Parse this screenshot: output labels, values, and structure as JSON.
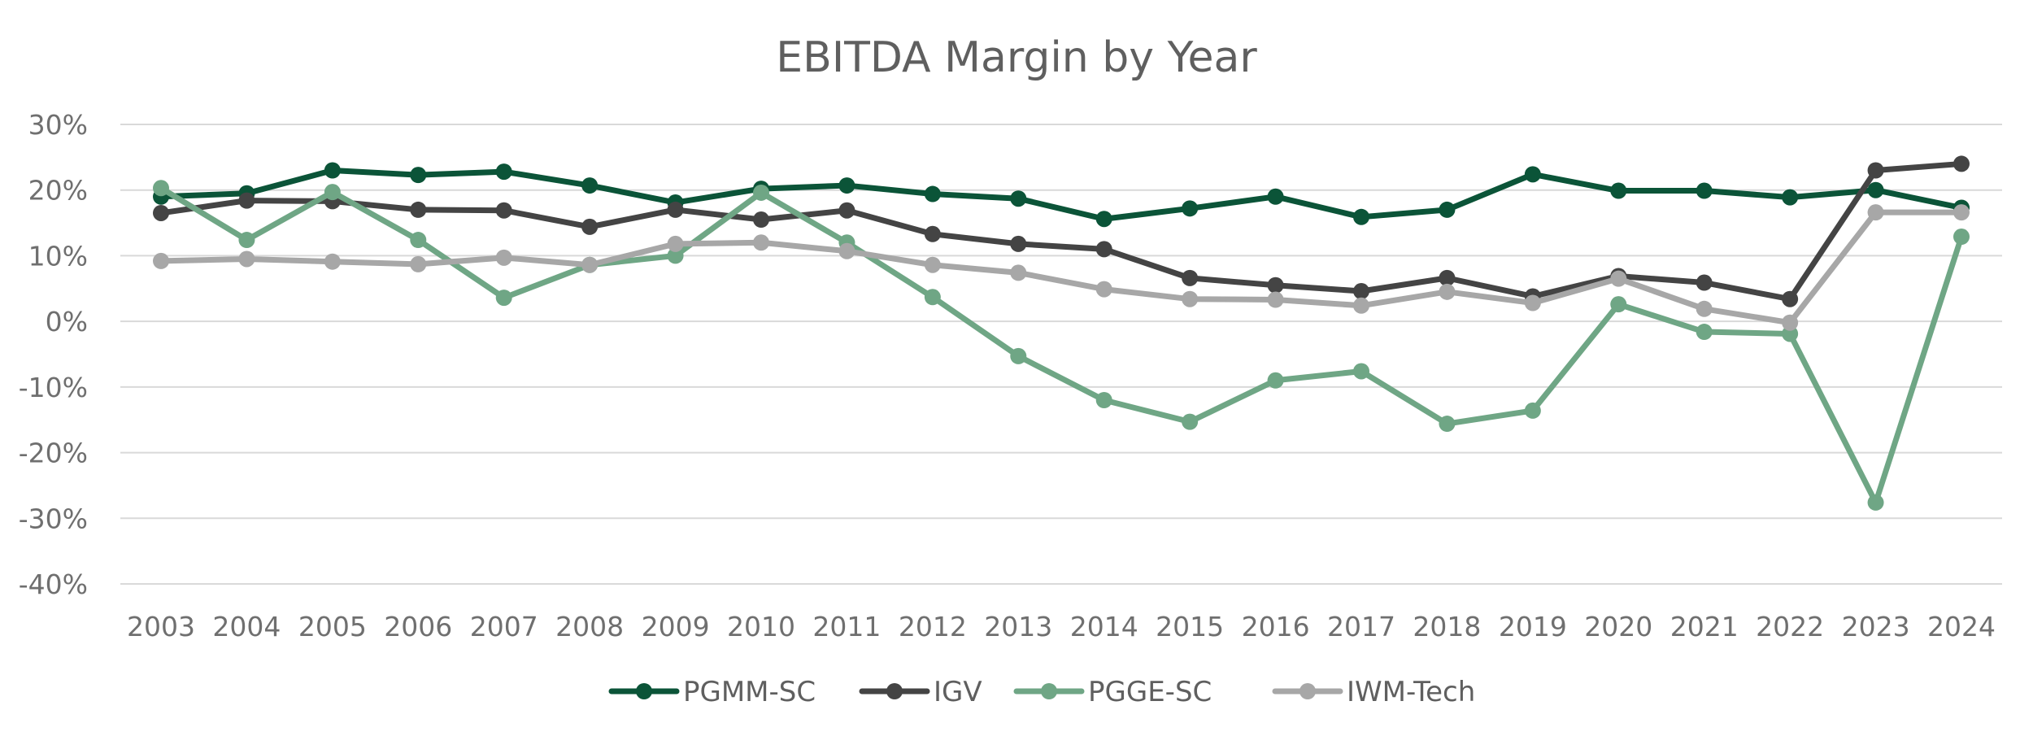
{
  "chart_data": {
    "type": "line",
    "title": "EBITDA Margin by Year",
    "xlabel": "",
    "ylabel": "",
    "categories": [
      "2003",
      "2004",
      "2005",
      "2006",
      "2007",
      "2008",
      "2009",
      "2010",
      "2011",
      "2012",
      "2013",
      "2014",
      "2015",
      "2016",
      "2017",
      "2018",
      "2019",
      "2020",
      "2021",
      "2022",
      "2023",
      "2024"
    ],
    "ylim": [
      -40,
      30
    ],
    "yticks": [
      30,
      20,
      10,
      0,
      -10,
      -20,
      -30,
      -40
    ],
    "ytick_labels": [
      "30%",
      "20%",
      "10%",
      "0%",
      "-10%",
      "-20%",
      "-30%",
      "-40%"
    ],
    "grid": true,
    "legend_position": "bottom",
    "series": [
      {
        "name": "PGMM-SC",
        "color": "#0b5438",
        "values": [
          19.0,
          19.5,
          23.0,
          22.3,
          22.8,
          20.7,
          18.1,
          20.2,
          20.7,
          19.4,
          18.7,
          15.6,
          17.2,
          19.0,
          15.9,
          17.0,
          22.4,
          19.9,
          19.9,
          18.9,
          20.0,
          17.3
        ]
      },
      {
        "name": "IGV",
        "color": "#444444",
        "values": [
          16.5,
          18.4,
          18.3,
          17.0,
          16.9,
          14.4,
          17.0,
          15.5,
          16.9,
          13.3,
          11.8,
          11.0,
          6.6,
          5.5,
          4.6,
          6.6,
          3.8,
          6.9,
          5.9,
          3.4,
          23.0,
          24.0
        ]
      },
      {
        "name": "PGGE-SC",
        "color": "#6fa685",
        "values": [
          20.3,
          12.4,
          19.7,
          12.4,
          3.6,
          8.6,
          10.0,
          19.6,
          12.0,
          3.7,
          -5.3,
          -12.0,
          -15.3,
          -9.0,
          -7.6,
          -15.6,
          -13.6,
          2.6,
          -1.6,
          -1.9,
          -27.6,
          12.9
        ]
      },
      {
        "name": "IWM-Tech",
        "color": "#a7a7a7",
        "values": [
          9.2,
          9.5,
          9.1,
          8.7,
          9.7,
          8.6,
          11.8,
          12.0,
          10.7,
          8.6,
          7.4,
          4.9,
          3.4,
          3.3,
          2.4,
          4.5,
          2.8,
          6.5,
          1.9,
          -0.2,
          16.6,
          16.6
        ]
      }
    ]
  }
}
